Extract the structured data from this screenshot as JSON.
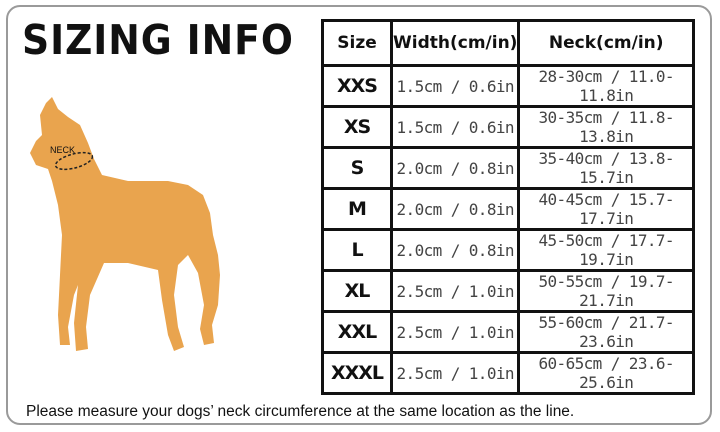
{
  "title": "SIZING INFO",
  "dog_label": "NECK",
  "dog_color": "#E9A44E",
  "table": {
    "headers": [
      "Size",
      "Width(cm/in)",
      "Neck(cm/in)"
    ],
    "rows": [
      {
        "size": "XXS",
        "width": "1.5cm / 0.6in",
        "neck": "28-30cm / 11.0-11.8in"
      },
      {
        "size": "XS",
        "width": "1.5cm / 0.6in",
        "neck": "30-35cm / 11.8-13.8in"
      },
      {
        "size": "S",
        "width": "2.0cm / 0.8in",
        "neck": "35-40cm / 13.8-15.7in"
      },
      {
        "size": "M",
        "width": "2.0cm / 0.8in",
        "neck": "40-45cm / 15.7-17.7in"
      },
      {
        "size": "L",
        "width": "2.0cm / 0.8in",
        "neck": "45-50cm / 17.7-19.7in"
      },
      {
        "size": "XL",
        "width": "2.5cm / 1.0in",
        "neck": "50-55cm / 19.7-21.7in"
      },
      {
        "size": "XXL",
        "width": "2.5cm / 1.0in",
        "neck": "55-60cm / 21.7-23.6in"
      },
      {
        "size": "XXXL",
        "width": "2.5cm / 1.0in",
        "neck": "60-65cm / 23.6-25.6in"
      }
    ]
  },
  "note": "Please measure your dogs’  neck circumference at the same location as the line."
}
